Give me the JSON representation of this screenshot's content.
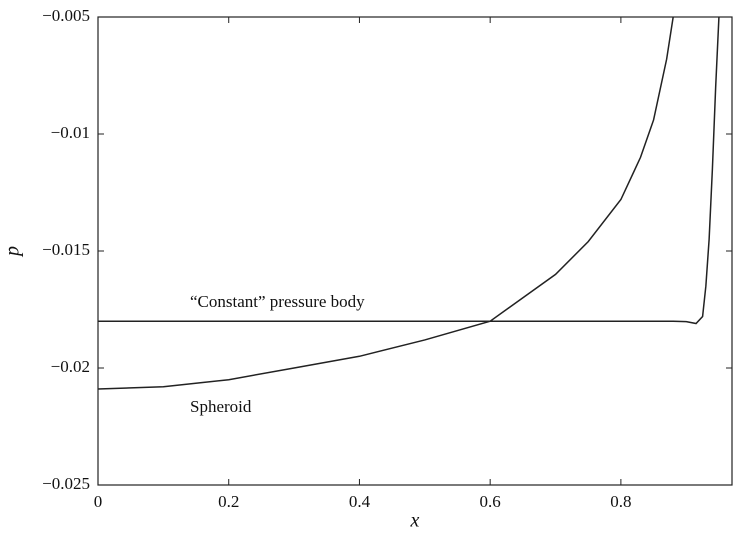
{
  "chart_data": {
    "type": "line",
    "xlabel": "x",
    "ylabel": "p",
    "xlim": [
      0,
      0.97
    ],
    "ylim": [
      -0.025,
      -0.005
    ],
    "xticks": [
      0,
      0.2,
      0.4,
      0.6,
      0.8
    ],
    "yticks": [
      {
        "value": -0.025,
        "label": "−0.025"
      },
      {
        "value": -0.02,
        "label": "−0.02"
      },
      {
        "value": -0.015,
        "label": "−0.015"
      },
      {
        "value": -0.01,
        "label": "−0.01"
      },
      {
        "value": -0.005,
        "label": "−0.005"
      }
    ],
    "grid": false,
    "series": [
      {
        "name": "“Constant” pressure body",
        "color": "#222222",
        "x": [
          0,
          0.2,
          0.4,
          0.6,
          0.8,
          0.88,
          0.9,
          0.915,
          0.925,
          0.93,
          0.935,
          0.94,
          0.945,
          0.95
        ],
        "values": [
          -0.018,
          -0.018,
          -0.018,
          -0.018,
          -0.018,
          -0.018,
          -0.01802,
          -0.0181,
          -0.0178,
          -0.0165,
          -0.0145,
          -0.0115,
          -0.008,
          -0.005
        ]
      },
      {
        "name": "Spheroid",
        "color": "#222222",
        "x": [
          0,
          0.1,
          0.2,
          0.3,
          0.4,
          0.5,
          0.6,
          0.7,
          0.75,
          0.8,
          0.83,
          0.85,
          0.87,
          0.88
        ],
        "values": [
          -0.0209,
          -0.0208,
          -0.0205,
          -0.02,
          -0.0195,
          -0.0188,
          -0.018,
          -0.016,
          -0.0146,
          -0.0128,
          -0.011,
          -0.0094,
          -0.0068,
          -0.005
        ]
      }
    ]
  }
}
